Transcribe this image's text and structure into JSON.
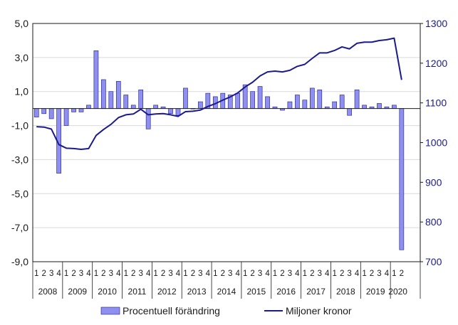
{
  "chart_data": {
    "type": "bar+line",
    "title": "",
    "categories_years": [
      "2008",
      "2009",
      "2010",
      "2011",
      "2012",
      "2013",
      "2014",
      "2015",
      "2016",
      "2017",
      "2018",
      "2019",
      "2020"
    ],
    "quarter_labels": [
      "1",
      "2",
      "3",
      "4"
    ],
    "left_axis": {
      "ylim": [
        -9,
        5
      ],
      "ticks": [
        5,
        3,
        1,
        -1,
        -3,
        -5,
        -7,
        -9
      ],
      "tick_labels": [
        "5,0",
        "3,0",
        "1,0",
        "-1,0",
        "-3,0",
        "-5,0",
        "-7,0",
        "-9,0"
      ]
    },
    "right_axis": {
      "ylim": [
        700,
        1300
      ],
      "ticks": [
        1300,
        1200,
        1100,
        1000,
        900,
        800,
        700
      ],
      "tick_labels": [
        "1300",
        "1200",
        "1100",
        "1000",
        "900",
        "800",
        "700"
      ]
    },
    "series": [
      {
        "name": "Procentuell förändring",
        "kind": "bar",
        "axis": "left",
        "color": "#8f8ff0",
        "edge_color": "#1a1a8c",
        "values": [
          -0.5,
          -0.3,
          -0.6,
          -3.8,
          -1.0,
          -0.2,
          -0.2,
          0.2,
          3.4,
          1.7,
          1.0,
          1.6,
          0.8,
          0.2,
          1.1,
          -1.2,
          0.2,
          0.1,
          -0.3,
          -0.4,
          1.2,
          0.0,
          0.4,
          0.9,
          0.7,
          0.9,
          0.8,
          0.9,
          1.4,
          1.0,
          1.3,
          0.7,
          0.1,
          -0.1,
          0.4,
          0.8,
          0.5,
          1.2,
          1.1,
          0.1,
          0.4,
          0.8,
          -0.4,
          1.1,
          0.2,
          0.1,
          0.3,
          0.1,
          0.2,
          -8.3
        ]
      },
      {
        "name": "Miljoner kronor",
        "kind": "line",
        "axis": "right",
        "color": "#1a1a8c",
        "values": [
          1040,
          1039,
          1034,
          995,
          986,
          985,
          983,
          985,
          1018,
          1033,
          1046,
          1063,
          1070,
          1072,
          1084,
          1070,
          1072,
          1073,
          1070,
          1066,
          1078,
          1079,
          1082,
          1091,
          1098,
          1107,
          1115,
          1125,
          1140,
          1152,
          1168,
          1178,
          1180,
          1178,
          1182,
          1192,
          1197,
          1212,
          1226,
          1226,
          1232,
          1241,
          1236,
          1250,
          1253,
          1253,
          1257,
          1259,
          1263,
          1158
        ]
      }
    ],
    "legend": {
      "position": "bottom",
      "items": [
        {
          "label": "Procentuell förändring",
          "kind": "bar"
        },
        {
          "label": "Miljoner kronor",
          "kind": "line"
        }
      ]
    },
    "grid": "horizontal"
  }
}
